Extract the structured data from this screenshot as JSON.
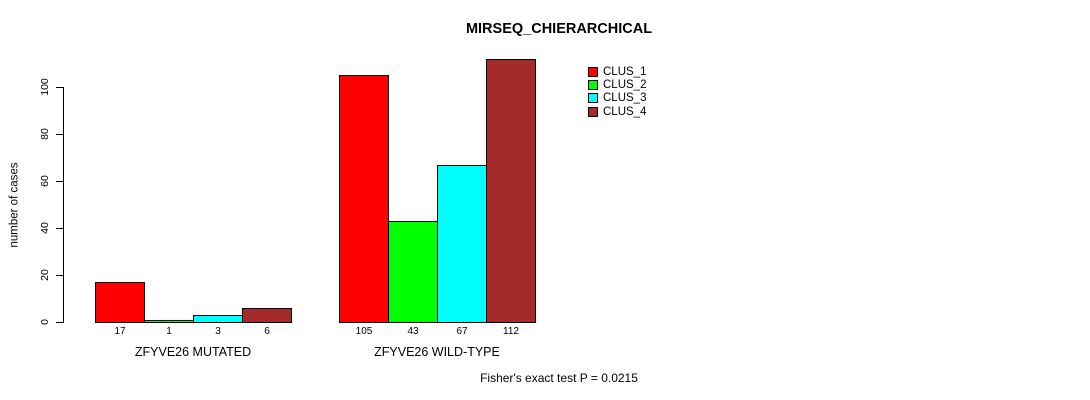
{
  "chart_data": {
    "type": "bar",
    "title": "MIRSEQ_CHIERARCHICAL",
    "ylabel": "number of cases",
    "annotation": "Fisher's exact test P = 0.0215",
    "categories": [
      "ZFYVE26 MUTATED",
      "ZFYVE26 WILD-TYPE"
    ],
    "series": [
      {
        "name": "CLUS_1",
        "color": "#ff0000",
        "values": [
          17,
          105
        ]
      },
      {
        "name": "CLUS_2",
        "color": "#00ff00",
        "values": [
          1,
          43
        ]
      },
      {
        "name": "CLUS_3",
        "color": "#00ffff",
        "values": [
          3,
          67
        ]
      },
      {
        "name": "CLUS_4",
        "color": "#a52a2a",
        "values": [
          6,
          112
        ]
      }
    ],
    "yticks": [
      0,
      20,
      40,
      60,
      80,
      100
    ],
    "ylim": [
      0,
      117
    ],
    "grid": false,
    "show_bar_values": true,
    "legend_position": "top-right-inside"
  },
  "colors": {
    "background": "#ffffff",
    "text": "#000000",
    "bar_border": "#000000"
  }
}
